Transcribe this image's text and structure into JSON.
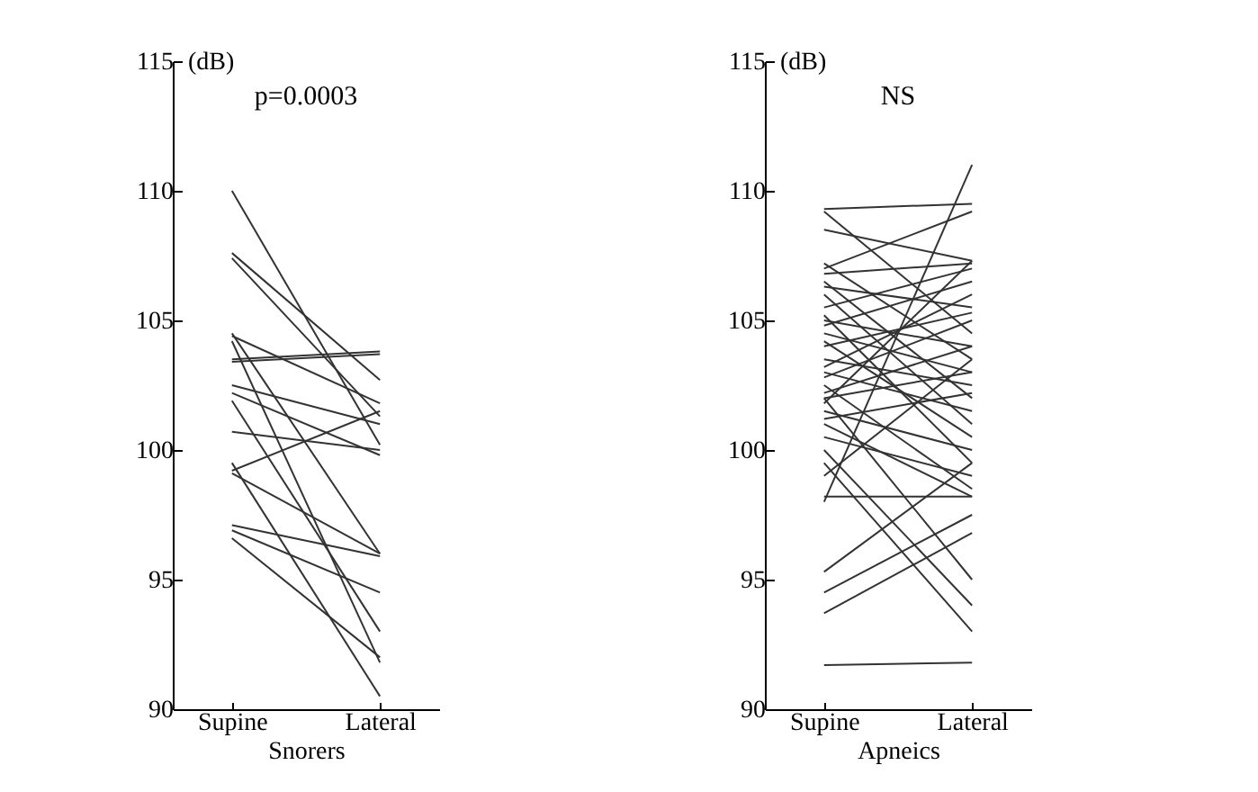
{
  "chart_data": [
    {
      "type": "line",
      "ylabel": "(dB)",
      "xlabel": "Snorers",
      "annotations": [
        "p=0.0003"
      ],
      "categories": [
        "Supine",
        "Lateral"
      ],
      "ylim": [
        90,
        115
      ],
      "yticks": [
        90,
        95,
        100,
        105,
        110,
        115
      ],
      "grid": false,
      "legend": false,
      "marker": "none",
      "line_style": "solid",
      "series": [
        {
          "color": "#333333",
          "values": [
            110.0,
            100.2
          ]
        },
        {
          "color": "#333333",
          "values": [
            107.6,
            102.7
          ]
        },
        {
          "color": "#333333",
          "values": [
            107.4,
            101.3
          ]
        },
        {
          "color": "#333333",
          "values": [
            104.5,
            96.0
          ]
        },
        {
          "color": "#333333",
          "values": [
            104.4,
            101.8
          ]
        },
        {
          "color": "#333333",
          "values": [
            104.2,
            91.8
          ]
        },
        {
          "color": "#333333",
          "values": [
            103.5,
            103.8
          ]
        },
        {
          "color": "#333333",
          "values": [
            103.4,
            103.7
          ]
        },
        {
          "color": "#333333",
          "values": [
            102.5,
            101.0
          ]
        },
        {
          "color": "#333333",
          "values": [
            102.2,
            99.8
          ]
        },
        {
          "color": "#333333",
          "values": [
            101.9,
            93.0
          ]
        },
        {
          "color": "#333333",
          "values": [
            100.7,
            100.0
          ]
        },
        {
          "color": "#333333",
          "values": [
            99.2,
            101.5
          ]
        },
        {
          "color": "#333333",
          "values": [
            99.1,
            96.0
          ]
        },
        {
          "color": "#333333",
          "values": [
            97.1,
            95.9
          ]
        },
        {
          "color": "#333333",
          "values": [
            96.9,
            94.5
          ]
        },
        {
          "color": "#333333",
          "values": [
            96.6,
            92.0
          ]
        },
        {
          "color": "#333333",
          "values": [
            99.5,
            90.5
          ]
        }
      ]
    },
    {
      "type": "line",
      "ylabel": "(dB)",
      "xlabel": "Apneics",
      "annotations": [
        "NS"
      ],
      "categories": [
        "Supine",
        "Lateral"
      ],
      "ylim": [
        90,
        115
      ],
      "yticks": [
        90,
        95,
        100,
        105,
        110,
        115
      ],
      "grid": false,
      "legend": false,
      "marker": "none",
      "line_style": "solid",
      "series": [
        {
          "color": "#333333",
          "values": [
            109.3,
            109.5
          ]
        },
        {
          "color": "#333333",
          "values": [
            109.2,
            104.5
          ]
        },
        {
          "color": "#333333",
          "values": [
            108.5,
            107.3
          ]
        },
        {
          "color": "#333333",
          "values": [
            107.2,
            103.5
          ]
        },
        {
          "color": "#333333",
          "values": [
            107.0,
            109.2
          ]
        },
        {
          "color": "#333333",
          "values": [
            106.8,
            107.2
          ]
        },
        {
          "color": "#333333",
          "values": [
            106.5,
            102.0
          ]
        },
        {
          "color": "#333333",
          "values": [
            106.3,
            105.5
          ]
        },
        {
          "color": "#333333",
          "values": [
            106.0,
            101.0
          ]
        },
        {
          "color": "#333333",
          "values": [
            105.5,
            107.0
          ]
        },
        {
          "color": "#333333",
          "values": [
            105.2,
            99.5
          ]
        },
        {
          "color": "#333333",
          "values": [
            105.0,
            104.0
          ]
        },
        {
          "color": "#333333",
          "values": [
            104.8,
            106.5
          ]
        },
        {
          "color": "#333333",
          "values": [
            104.5,
            103.0
          ]
        },
        {
          "color": "#333333",
          "values": [
            104.2,
            100.5
          ]
        },
        {
          "color": "#333333",
          "values": [
            104.0,
            105.3
          ]
        },
        {
          "color": "#333333",
          "values": [
            103.5,
            102.5
          ]
        },
        {
          "color": "#333333",
          "values": [
            103.2,
            106.0
          ]
        },
        {
          "color": "#333333",
          "values": [
            103.0,
            101.5
          ]
        },
        {
          "color": "#333333",
          "values": [
            102.8,
            105.0
          ]
        },
        {
          "color": "#333333",
          "values": [
            102.5,
            98.5
          ]
        },
        {
          "color": "#333333",
          "values": [
            102.2,
            104.0
          ]
        },
        {
          "color": "#333333",
          "values": [
            102.0,
            103.0
          ]
        },
        {
          "color": "#333333",
          "values": [
            101.8,
            107.3
          ]
        },
        {
          "color": "#333333",
          "values": [
            101.5,
            100.0
          ]
        },
        {
          "color": "#333333",
          "values": [
            101.2,
            102.2
          ]
        },
        {
          "color": "#333333",
          "values": [
            101.0,
            98.2
          ]
        },
        {
          "color": "#333333",
          "values": [
            100.5,
            99.0
          ]
        },
        {
          "color": "#333333",
          "values": [
            100.0,
            94.0
          ]
        },
        {
          "color": "#333333",
          "values": [
            99.5,
            93.0
          ]
        },
        {
          "color": "#333333",
          "values": [
            99.0,
            103.5
          ]
        },
        {
          "color": "#333333",
          "values": [
            98.2,
            98.2
          ]
        },
        {
          "color": "#333333",
          "values": [
            98.0,
            111.0
          ]
        },
        {
          "color": "#333333",
          "values": [
            95.3,
            99.5
          ]
        },
        {
          "color": "#333333",
          "values": [
            94.5,
            97.5
          ]
        },
        {
          "color": "#333333",
          "values": [
            93.7,
            96.8
          ]
        },
        {
          "color": "#333333",
          "values": [
            91.7,
            91.8
          ]
        },
        {
          "color": "#333333",
          "values": [
            102.0,
            95.0
          ]
        }
      ]
    }
  ]
}
